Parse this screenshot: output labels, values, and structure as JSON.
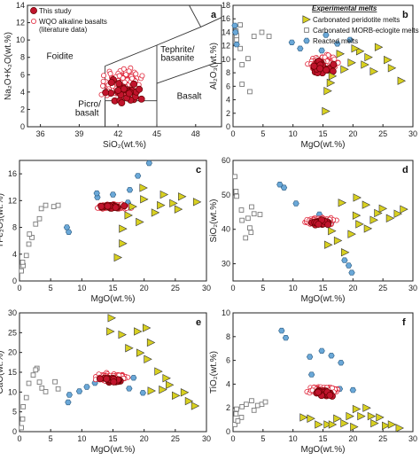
{
  "colors": {
    "this_study": "#c0142c",
    "wqo": "#e0283c",
    "peridotite": "#d8d020",
    "morb": "#7a7a7a",
    "reacted": "#6aa8d8"
  },
  "chart_data": [
    {
      "type": "scatter",
      "id": "a",
      "label": "a",
      "xlabel": "SiO₂(wt.%)",
      "ylabel": "Na₂O+K₂O(wt.%)",
      "xlim": [
        35,
        50
      ],
      "ylim": [
        0,
        14
      ],
      "xticks": [
        36,
        39,
        42,
        45,
        48
      ],
      "yticks": [
        0,
        2,
        4,
        6,
        8,
        10,
        12,
        14
      ],
      "fields": [
        "Foidite",
        "Tephrite/ basanite",
        "Picro/ basalt",
        "Basalt"
      ],
      "legend": [
        "This study",
        "WQO alkaline basalts (literature data)"
      ]
    },
    {
      "type": "scatter",
      "id": "b",
      "label": "b",
      "xlabel": "MgO(wt.%)",
      "ylabel": "Al₂O₃(wt.%)",
      "xlim": [
        0,
        30
      ],
      "ylim": [
        0,
        18
      ],
      "xticks": [
        0,
        5,
        10,
        15,
        20,
        25,
        30
      ],
      "yticks": [
        0,
        2,
        4,
        6,
        8,
        10,
        12,
        14,
        16,
        18
      ],
      "legend_title": "Experimental melts",
      "legend": [
        "Carbonated peridotite melts",
        "Carbonated MORB-eclogite melts",
        "Reacted melts"
      ]
    },
    {
      "type": "scatter",
      "id": "c",
      "label": "c",
      "xlabel": "MgO(wt.%)",
      "ylabel": "TFe₂O₃(wt.%)",
      "xlim": [
        0,
        30
      ],
      "ylim": [
        0,
        18
      ],
      "xticks": [
        0,
        5,
        10,
        15,
        20,
        25,
        30
      ],
      "yticks": [
        0,
        4,
        8,
        12,
        16
      ]
    },
    {
      "type": "scatter",
      "id": "d",
      "label": "d",
      "xlabel": "MgO(wt.%)",
      "ylabel": "SiO₂(wt.%)",
      "xlim": [
        0,
        30
      ],
      "ylim": [
        25,
        60
      ],
      "xticks": [
        0,
        5,
        10,
        15,
        20,
        25,
        30
      ],
      "yticks": [
        30,
        40,
        50,
        60
      ]
    },
    {
      "type": "scatter",
      "id": "e",
      "label": "e",
      "xlabel": "MgO(wt.%)",
      "ylabel": "CaO(wt.%)",
      "xlim": [
        0,
        30
      ],
      "ylim": [
        0,
        30
      ],
      "xticks": [
        0,
        5,
        10,
        15,
        20,
        25,
        30
      ],
      "yticks": [
        0,
        5,
        10,
        15,
        20,
        25,
        30
      ]
    },
    {
      "type": "scatter",
      "id": "f",
      "label": "f",
      "xlabel": "MgO(wt.%)",
      "ylabel": "TiO₂(wt.%)",
      "xlim": [
        0,
        30
      ],
      "ylim": [
        0,
        10
      ],
      "xticks": [
        0,
        5,
        10,
        15,
        20,
        25,
        30
      ],
      "yticks": [
        0,
        2,
        4,
        6,
        8,
        10
      ]
    }
  ]
}
